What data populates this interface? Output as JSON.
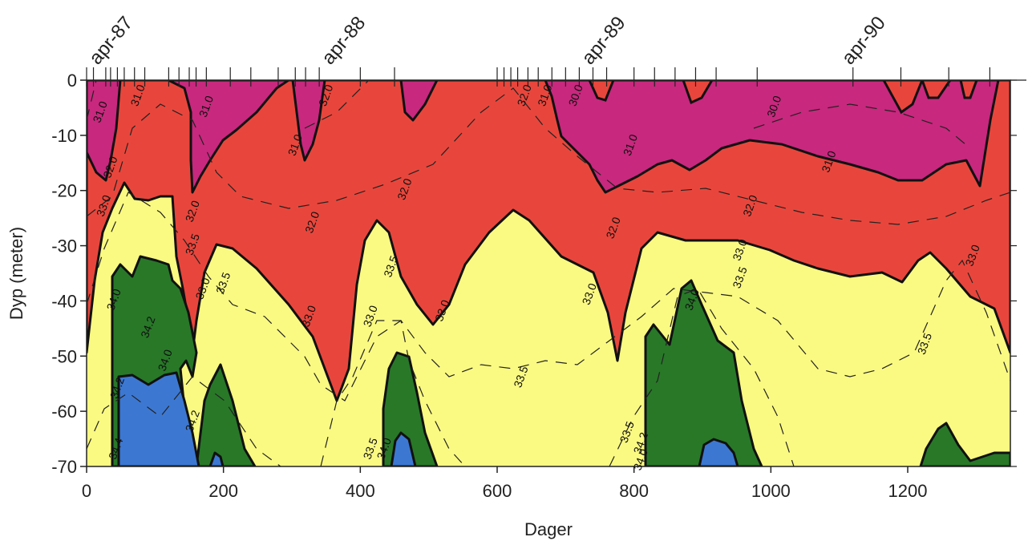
{
  "chart_data": {
    "type": "contour",
    "xlabel": "Dager",
    "ylabel": "Dyp (meter)",
    "xlim": [
      0,
      1350
    ],
    "ylim": [
      -70,
      0
    ],
    "x_ticks": [
      0,
      200,
      400,
      600,
      800,
      1000,
      1200
    ],
    "x_tick_labels": [
      "0",
      "200",
      "400",
      "600",
      "800",
      "1000",
      "1200"
    ],
    "y_ticks": [
      0,
      -10,
      -20,
      -30,
      -40,
      -50,
      -60,
      -70
    ],
    "y_tick_labels": [
      "0",
      "-10",
      "-20",
      "-30",
      "-40",
      "-50",
      "-60",
      "-70"
    ],
    "date_labels": [
      {
        "x": 0,
        "text": "apr-87"
      },
      {
        "x": 340,
        "text": "apr-88"
      },
      {
        "x": 720,
        "text": "apr-89"
      },
      {
        "x": 1100,
        "text": "apr-90"
      }
    ],
    "sampling_days": [
      0,
      10,
      28,
      35,
      45,
      55,
      70,
      85,
      120,
      135,
      150,
      160,
      175,
      210,
      240,
      280,
      305,
      320,
      340,
      400,
      450,
      600,
      610,
      620,
      630,
      645,
      660,
      680,
      700,
      720,
      740,
      760,
      800,
      830,
      860,
      890,
      920,
      980,
      1120,
      1190,
      1260,
      1320
    ],
    "levels": [
      {
        "range": "< 31.0",
        "color": "#c8287e"
      },
      {
        "range": "31.0 - 33.0",
        "color": "#e8463c"
      },
      {
        "range": "33.0 - 34.0",
        "color": "#fafa82"
      },
      {
        "range": "34.0 - 34.4",
        "color": "#287828"
      },
      {
        "range": "> 34.4",
        "color": "#3c78d2"
      }
    ],
    "contour_labels": [
      {
        "x": 25,
        "y": -6,
        "text": "31.0"
      },
      {
        "x": 80,
        "y": -3,
        "text": "31.0"
      },
      {
        "x": 180,
        "y": -5,
        "text": "31.0"
      },
      {
        "x": 310,
        "y": -12,
        "text": "31.0"
      },
      {
        "x": 355,
        "y": -3,
        "text": "32.0"
      },
      {
        "x": 40,
        "y": -16,
        "text": "32.0"
      },
      {
        "x": 160,
        "y": -24,
        "text": "32.0"
      },
      {
        "x": 335,
        "y": -26,
        "text": "32.0"
      },
      {
        "x": 470,
        "y": -20,
        "text": "32.0"
      },
      {
        "x": 645,
        "y": -3,
        "text": "32.0"
      },
      {
        "x": 675,
        "y": -3,
        "text": "31.0"
      },
      {
        "x": 720,
        "y": -3,
        "text": "30.0"
      },
      {
        "x": 800,
        "y": -12,
        "text": "31.0"
      },
      {
        "x": 1010,
        "y": -5,
        "text": "30.0"
      },
      {
        "x": 1090,
        "y": -15,
        "text": "31.0"
      },
      {
        "x": 975,
        "y": -23,
        "text": "32.0"
      },
      {
        "x": 775,
        "y": -27,
        "text": "32.0"
      },
      {
        "x": 30,
        "y": -23,
        "text": "33.0"
      },
      {
        "x": 160,
        "y": -30,
        "text": "33.5"
      },
      {
        "x": 175,
        "y": -38,
        "text": "33.0"
      },
      {
        "x": 205,
        "y": -37,
        "text": "33.5"
      },
      {
        "x": 330,
        "y": -43,
        "text": "33.0"
      },
      {
        "x": 420,
        "y": -43,
        "text": "33.0"
      },
      {
        "x": 450,
        "y": -34,
        "text": "33.5"
      },
      {
        "x": 525,
        "y": -42,
        "text": "33.0"
      },
      {
        "x": 740,
        "y": -39,
        "text": "33.0"
      },
      {
        "x": 960,
        "y": -31,
        "text": "33.0"
      },
      {
        "x": 960,
        "y": -36,
        "text": "33.5"
      },
      {
        "x": 1300,
        "y": -32,
        "text": "33.0"
      },
      {
        "x": 1230,
        "y": -48,
        "text": "33.5"
      },
      {
        "x": 640,
        "y": -54,
        "text": "33.5"
      },
      {
        "x": 45,
        "y": -40,
        "text": "34.0"
      },
      {
        "x": 95,
        "y": -45,
        "text": "34.2"
      },
      {
        "x": 120,
        "y": -51,
        "text": "34.0"
      },
      {
        "x": 50,
        "y": -56,
        "text": "34.2"
      },
      {
        "x": 160,
        "y": -62,
        "text": "34.2"
      },
      {
        "x": 48,
        "y": -67,
        "text": "34.4"
      },
      {
        "x": 420,
        "y": -67,
        "text": "33.5"
      },
      {
        "x": 440,
        "y": -67,
        "text": "34.0"
      },
      {
        "x": 795,
        "y": -64,
        "text": "33.5"
      },
      {
        "x": 815,
        "y": -69,
        "text": "34.0"
      },
      {
        "x": 815,
        "y": -66,
        "text": "34.2"
      },
      {
        "x": 890,
        "y": -40,
        "text": "34.0"
      }
    ]
  }
}
